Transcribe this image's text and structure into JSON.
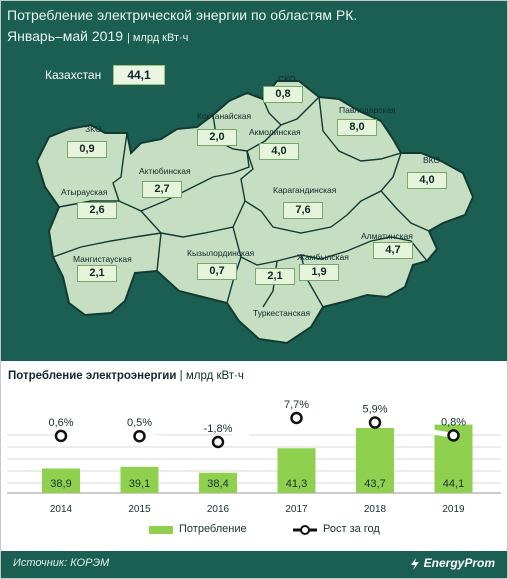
{
  "header": {
    "title_line1": "Потребление электрической энергии по областям РК.",
    "title_line2": "Январь–май 2019",
    "unit": "| млрд кВт·ч"
  },
  "map": {
    "kazakhstan_label": "Казахстан",
    "kazakhstan_value": "44,1",
    "regions": [
      {
        "name": "ЗКО",
        "value": "0,9"
      },
      {
        "name": "Атырауская",
        "value": "2,6"
      },
      {
        "name": "Мангистауская",
        "value": "2,1"
      },
      {
        "name": "Актюбинская",
        "value": "2,7"
      },
      {
        "name": "Костанайская",
        "value": "2,0"
      },
      {
        "name": "СКО",
        "value": "0,8"
      },
      {
        "name": "Акмолинская",
        "value": "4,0"
      },
      {
        "name": "Павлодарская",
        "value": "8,0"
      },
      {
        "name": "ВКО",
        "value": "4,0"
      },
      {
        "name": "Карагандинская",
        "value": "7,6"
      },
      {
        "name": "Кызылординская",
        "value": "0,7"
      },
      {
        "name": "Жамбылская",
        "value": "1,9"
      },
      {
        "name": "Алматинская",
        "value": "4,7"
      },
      {
        "name": "Туркестанская",
        "value": "2,1"
      }
    ],
    "turkestan_value": "2,1"
  },
  "chart_title": "Потребление электроэнергии",
  "chart_unit": "| млрд кВт·ч",
  "chart_data": {
    "type": "bar",
    "categories": [
      "2014",
      "2015",
      "2016",
      "2017",
      "2018",
      "2019"
    ],
    "series": [
      {
        "name": "Потребление",
        "values": [
          38.9,
          39.1,
          38.4,
          41.3,
          43.7,
          44.1
        ],
        "labels": [
          "38,9",
          "39,1",
          "38,4",
          "41,3",
          "43,7",
          "44,1"
        ]
      },
      {
        "name": "Рост за год",
        "type": "line",
        "values": [
          0.6,
          0.5,
          -1.8,
          7.7,
          5.9,
          0.8
        ],
        "labels": [
          "0,6%",
          "0,5%",
          "-1,8%",
          "7,7%",
          "5,9%",
          "0,8%"
        ]
      }
    ],
    "legend": "bottom"
  },
  "legend": {
    "bar_label": "Потребление",
    "line_label": "Рост за год"
  },
  "footer": {
    "source": "Источник: КОРЭМ",
    "brand": "EnergyProm"
  },
  "colors": {
    "background": "#1b5f52",
    "bar": "#8fd14f",
    "line": "#ffffff"
  }
}
